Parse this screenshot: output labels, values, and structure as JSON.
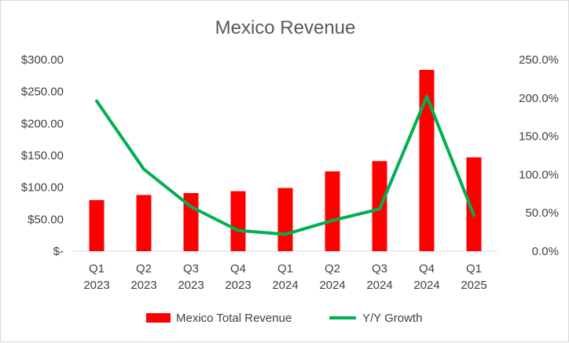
{
  "chart_data": {
    "type": "bar",
    "title": "Mexico Revenue",
    "categories": [
      [
        "Q1",
        "2023"
      ],
      [
        "Q2",
        "2023"
      ],
      [
        "Q3",
        "2023"
      ],
      [
        "Q4",
        "2023"
      ],
      [
        "Q1",
        "2024"
      ],
      [
        "Q2",
        "2024"
      ],
      [
        "Q3",
        "2024"
      ],
      [
        "Q4",
        "2024"
      ],
      [
        "Q1",
        "2025"
      ]
    ],
    "series": [
      {
        "name": "Mexico Total Revenue",
        "type": "bar",
        "axis": "left",
        "color": "#ff0000",
        "values": [
          80,
          88,
          91,
          94,
          99,
          125,
          141,
          284,
          147
        ]
      },
      {
        "name": "Y/Y Growth",
        "type": "line",
        "axis": "right",
        "color": "#00b050",
        "values": [
          1.96,
          1.07,
          0.58,
          0.27,
          0.22,
          0.4,
          0.55,
          2.02,
          0.47
        ]
      }
    ],
    "y_left": {
      "ylim": [
        0,
        300
      ],
      "ticks": [
        0,
        50,
        100,
        150,
        200,
        250,
        300
      ],
      "tick_labels": [
        "$-",
        "$50.00",
        "$100.00",
        "$150.00",
        "$200.00",
        "$250.00",
        "$300.00"
      ]
    },
    "y_right": {
      "ylim": [
        0,
        2.5
      ],
      "ticks": [
        0,
        0.5,
        1.0,
        1.5,
        2.0,
        2.5
      ],
      "tick_labels": [
        "0.0%",
        "50.0%",
        "100.0%",
        "150.0%",
        "200.0%",
        "250.0%"
      ]
    },
    "grid": false,
    "legend_position": "bottom"
  }
}
